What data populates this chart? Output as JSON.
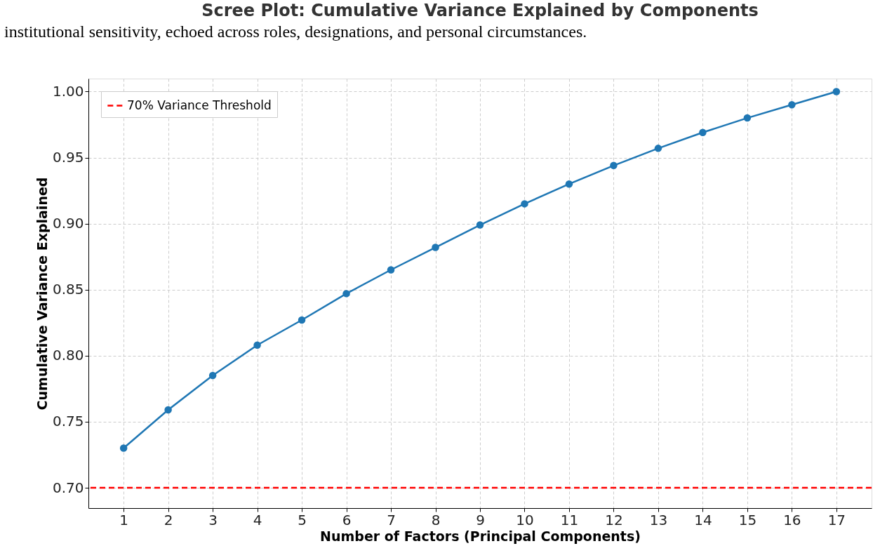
{
  "chart_data": {
    "type": "line",
    "title": "Scree Plot: Cumulative Variance Explained by Components",
    "xlabel": "Number of Factors (Principal Components)",
    "ylabel": "Cumulative Variance Explained",
    "annotations": [
      "institutional sensitivity, echoed across roles, designations, and personal circumstances."
    ],
    "x": [
      1,
      2,
      3,
      4,
      5,
      6,
      7,
      8,
      9,
      10,
      11,
      12,
      13,
      14,
      15,
      16,
      17
    ],
    "series": [
      {
        "color": "#1f77b4",
        "values": [
          0.73,
          0.759,
          0.785,
          0.808,
          0.827,
          0.847,
          0.865,
          0.882,
          0.899,
          0.915,
          0.93,
          0.944,
          0.957,
          0.969,
          0.98,
          0.99,
          1.0
        ]
      }
    ],
    "marker": "circle",
    "line_style": "solid",
    "xlim": [
      0.21,
      17.79
    ],
    "xticks": [
      1,
      2,
      3,
      4,
      5,
      6,
      7,
      8,
      9,
      10,
      11,
      12,
      13,
      14,
      15,
      16,
      17
    ],
    "ylim": [
      0.6846,
      1.0098
    ],
    "yticks": [
      {
        "value": 0.7,
        "label": "0.70"
      },
      {
        "value": 0.75,
        "label": "0.75"
      },
      {
        "value": 0.8,
        "label": "0.80"
      },
      {
        "value": 0.85,
        "label": "0.85"
      },
      {
        "value": 0.9,
        "label": "0.90"
      },
      {
        "value": 0.95,
        "label": "0.95"
      },
      {
        "value": 1.0,
        "label": "1.00"
      }
    ],
    "ref_lines": [
      {
        "axis": "y",
        "value": 0.7,
        "label": "70% Variance Threshold",
        "color": "#ff0000",
        "line_style": "dashed"
      }
    ],
    "grid": true,
    "legend": "top left"
  }
}
